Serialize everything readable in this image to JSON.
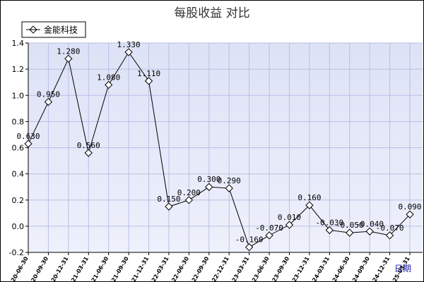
{
  "chart_data": {
    "type": "line",
    "title": "每股收益  对比",
    "xlabel": "日期",
    "ylabel": "",
    "ylim": [
      -0.2,
      1.4
    ],
    "yticks": [
      "-0.2",
      "0.0",
      "0.2",
      "0.4",
      "0.6",
      "0.8",
      "1.0",
      "1.2",
      "1.4"
    ],
    "grid": true,
    "legend_position": "top-left",
    "colors": {
      "plot_bg_top": "#dde2f6",
      "plot_bg_bottom": "#eef0fb",
      "line": "#000000",
      "grid": "#b8c0e6",
      "xunit": "#1a1aa6"
    },
    "categories": [
      "2020-06-30",
      "2020-09-30",
      "2020-12-31",
      "2021-03-31",
      "2021-06-30",
      "2021-09-30",
      "2021-12-31",
      "2022-03-31",
      "2022-06-30",
      "2022-09-30",
      "2022-12-31",
      "2023-03-31",
      "2023-06-30",
      "2023-09-30",
      "2023-12-31",
      "2024-03-31",
      "2024-06-30",
      "2024-09-30",
      "2024-12-31",
      "2025-03-31"
    ],
    "series": [
      {
        "name": "金能科技",
        "values": [
          0.63,
          0.95,
          1.28,
          0.56,
          1.08,
          1.33,
          1.11,
          0.15,
          0.2,
          0.3,
          0.29,
          -0.16,
          -0.07,
          0.01,
          0.16,
          -0.03,
          -0.05,
          -0.04,
          -0.07,
          0.09
        ],
        "labels": [
          "0.630",
          "0.950",
          "1.280",
          "0.560",
          "1.080",
          "1.330",
          "1.110",
          "0.150",
          "0.200",
          "0.300",
          "0.290",
          "-0.160",
          "-0.070",
          "0.010",
          "0.160",
          "-0.030",
          "-0.050",
          "-0.040",
          "-0.070",
          "0.090"
        ]
      }
    ]
  }
}
